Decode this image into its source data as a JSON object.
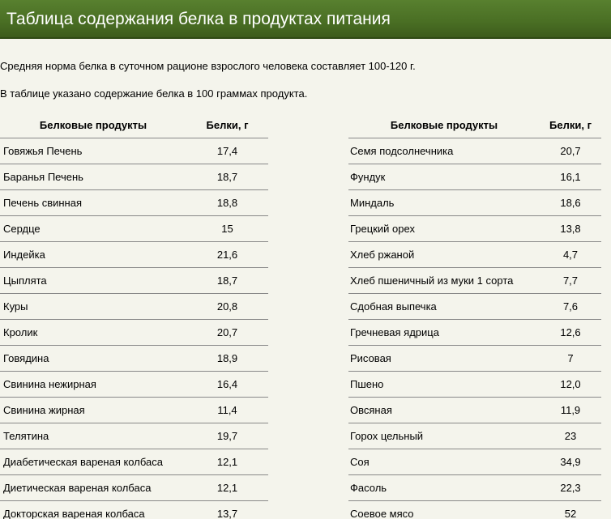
{
  "title": "Таблица содержания белка в продуктах питания",
  "intro": {
    "line1": "Средняя норма белка в суточном рационе взрослого человека составляет 100-120 г.",
    "line2": "В таблице указано содержание белка в 100 граммах продукта."
  },
  "tables": {
    "left": {
      "headers": {
        "product": "Белковые продукты",
        "protein": "Белки, г"
      },
      "rows": [
        {
          "name": "Говяжья Печень",
          "value": "17,4"
        },
        {
          "name": "Баранья Печень",
          "value": "18,7"
        },
        {
          "name": "Печень свинная",
          "value": "18,8"
        },
        {
          "name": "Сердце",
          "value": "15"
        },
        {
          "name": "Индейка",
          "value": "21,6"
        },
        {
          "name": "Цыплята",
          "value": "18,7"
        },
        {
          "name": "Куры",
          "value": "20,8"
        },
        {
          "name": "Кролик",
          "value": "20,7"
        },
        {
          "name": "Говядина",
          "value": "18,9"
        },
        {
          "name": "Свинина нежирная",
          "value": "16,4"
        },
        {
          "name": "Свинина жирная",
          "value": "11,4"
        },
        {
          "name": "Телятина",
          "value": "19,7"
        },
        {
          "name": "Диабетическая вареная колбаса",
          "value": "12,1"
        },
        {
          "name": "Диетическая вареная колбаса",
          "value": "12,1"
        },
        {
          "name": "Докторская вареная колбаса",
          "value": "13,7"
        }
      ]
    },
    "right": {
      "headers": {
        "product": "Белковые продукты",
        "protein": "Белки, г"
      },
      "rows": [
        {
          "name": "Семя подсолнечника",
          "value": "20,7"
        },
        {
          "name": "Фундук",
          "value": "16,1"
        },
        {
          "name": "Миндаль",
          "value": "18,6"
        },
        {
          "name": "Грецкий орех",
          "value": "13,8"
        },
        {
          "name": "Хлеб ржаной",
          "value": "4,7"
        },
        {
          "name": "Хлеб пшеничный из муки 1 сорта",
          "value": "7,7"
        },
        {
          "name": "Сдобная выпечка",
          "value": "7,6"
        },
        {
          "name": "Гречневая ядрица",
          "value": "12,6"
        },
        {
          "name": "Рисовая",
          "value": "7"
        },
        {
          "name": "Пшено",
          "value": "12,0"
        },
        {
          "name": "Овсяная",
          "value": "11,9"
        },
        {
          "name": "Горох цельный",
          "value": "23"
        },
        {
          "name": "Соя",
          "value": "34,9"
        },
        {
          "name": "Фасоль",
          "value": "22,3"
        },
        {
          "name": "Соевое мясо",
          "value": "52"
        }
      ]
    }
  },
  "colors": {
    "title_bar": "#4a6f24",
    "page_background": "#f4f4ec",
    "row_divider": "#888888"
  }
}
